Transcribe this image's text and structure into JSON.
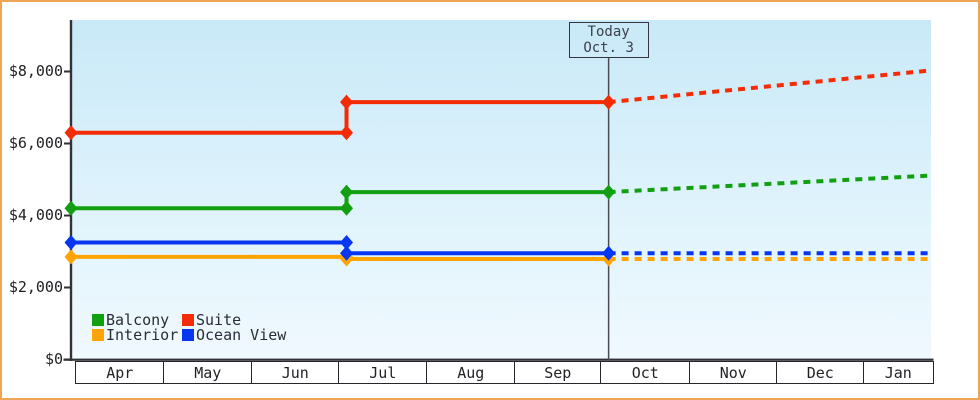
{
  "window": {
    "frame_color": "#EFA558",
    "background": "#FFFFFF"
  },
  "chart_data": {
    "type": "line",
    "title": "",
    "x_axis": {
      "categories": [
        "Apr",
        "May",
        "Jun",
        "Jul",
        "Aug",
        "Sep",
        "Oct",
        "Nov",
        "Dec",
        "Jan"
      ],
      "style": "boxed-month-cells"
    },
    "y_axis": {
      "ticks": [
        0,
        2000,
        4000,
        6000,
        8000
      ],
      "tick_labels": [
        "$0",
        "$2,000",
        "$4,000",
        "$6,000",
        "$8,000"
      ],
      "range": [
        0,
        9400
      ],
      "grid": false
    },
    "today": {
      "label_line1": "Today",
      "label_line2": "Oct. 3",
      "month": "Oct",
      "day": 3
    },
    "forecast_style": "dashed",
    "series": [
      {
        "name": "Balcony",
        "color": "#12A012",
        "points": [
          {
            "m": "Apr",
            "d": 0,
            "v": 4200
          },
          {
            "m": "Jul",
            "d": 3,
            "v": 4200
          },
          {
            "m": "Jul",
            "d": 3,
            "v": 4650
          },
          {
            "m": "Oct",
            "d": 3,
            "v": 4650
          }
        ],
        "forecast": [
          {
            "m": "Oct",
            "d": 3,
            "v": 4650
          },
          {
            "m": "Jan",
            "d": 31,
            "v": 5110
          }
        ]
      },
      {
        "name": "Suite",
        "color": "#F42C05",
        "points": [
          {
            "m": "Apr",
            "d": 0,
            "v": 6300
          },
          {
            "m": "Jul",
            "d": 3,
            "v": 6300
          },
          {
            "m": "Jul",
            "d": 3,
            "v": 7150
          },
          {
            "m": "Oct",
            "d": 3,
            "v": 7150
          }
        ],
        "forecast": [
          {
            "m": "Oct",
            "d": 3,
            "v": 7150
          },
          {
            "m": "Jan",
            "d": 31,
            "v": 8030
          }
        ]
      },
      {
        "name": "Interior",
        "color": "#FFA405",
        "points": [
          {
            "m": "Apr",
            "d": 0,
            "v": 2850
          },
          {
            "m": "Jul",
            "d": 3,
            "v": 2850
          },
          {
            "m": "Jul",
            "d": 3,
            "v": 2790
          },
          {
            "m": "Oct",
            "d": 3,
            "v": 2790
          }
        ],
        "forecast": [
          {
            "m": "Oct",
            "d": 3,
            "v": 2790
          },
          {
            "m": "Jan",
            "d": 31,
            "v": 2790
          }
        ]
      },
      {
        "name": "Ocean View",
        "color": "#0636F0",
        "points": [
          {
            "m": "Apr",
            "d": 0,
            "v": 3250
          },
          {
            "m": "Jul",
            "d": 3,
            "v": 3250
          },
          {
            "m": "Jul",
            "d": 3,
            "v": 2950
          },
          {
            "m": "Oct",
            "d": 3,
            "v": 2950
          }
        ],
        "forecast": [
          {
            "m": "Oct",
            "d": 3,
            "v": 2950
          },
          {
            "m": "Jan",
            "d": 31,
            "v": 2950
          }
        ]
      }
    ],
    "legend": {
      "position": "inside-bottom-left",
      "items": [
        {
          "label": "Balcony",
          "color": "#12A012"
        },
        {
          "label": "Suite",
          "color": "#F42C05"
        },
        {
          "label": "Interior",
          "color": "#FFA405"
        },
        {
          "label": "Ocean View",
          "color": "#0636F0"
        }
      ]
    },
    "plot_background": {
      "top": "#C9E9F8",
      "mid": "#DFF3FC",
      "bottom": "#F0F9FE"
    },
    "axis_color": "#323237",
    "today_line_color": "#4A4C52"
  }
}
